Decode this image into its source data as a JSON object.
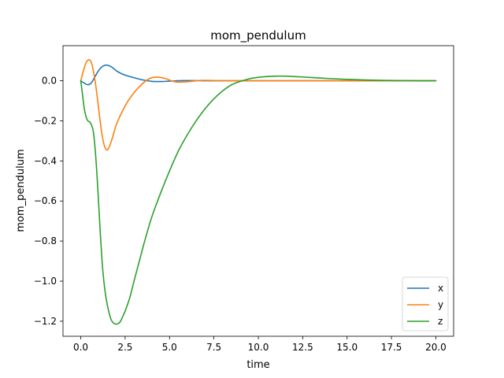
{
  "chart_data": {
    "type": "line",
    "title": "mom_pendulum",
    "xlabel": "time",
    "ylabel": "mom_pendulum",
    "xlim": [
      -1.0,
      21.0
    ],
    "ylim": [
      -1.275,
      0.175
    ],
    "xticks": [
      0.0,
      2.5,
      5.0,
      7.5,
      10.0,
      12.5,
      15.0,
      17.5,
      20.0
    ],
    "xtick_labels": [
      "0.0",
      "2.5",
      "5.0",
      "7.5",
      "10.0",
      "12.5",
      "15.0",
      "17.5",
      "20.0"
    ],
    "yticks": [
      0.0,
      -0.2,
      -0.4,
      -0.6,
      -0.8,
      -1.0,
      -1.2
    ],
    "ytick_labels": [
      "0.0",
      "−0.2",
      "−0.4",
      "−0.6",
      "−0.8",
      "−1.0",
      "−1.2"
    ],
    "grid": false,
    "legend_position": "bottom-right",
    "series": [
      {
        "name": "x",
        "color": "#1f77b4",
        "x": [
          0,
          0.2,
          0.4,
          0.6,
          0.8,
          1.0,
          1.2,
          1.4,
          1.6,
          1.8,
          2.0,
          2.3,
          2.6,
          3.0,
          3.5,
          4.0,
          4.5,
          5.0,
          5.5,
          6.0,
          7.0,
          8.0,
          10.0,
          12.0,
          15.0,
          20.0
        ],
        "y": [
          0.0,
          -0.012,
          -0.02,
          -0.01,
          0.02,
          0.05,
          0.07,
          0.078,
          0.075,
          0.065,
          0.05,
          0.035,
          0.025,
          0.015,
          0.004,
          -0.003,
          -0.004,
          -0.002,
          0.0,
          0.001,
          0.0,
          0.0,
          0.0,
          0.0,
          0.0,
          0.0
        ]
      },
      {
        "name": "y",
        "color": "#ff7f0e",
        "x": [
          0,
          0.15,
          0.3,
          0.45,
          0.6,
          0.75,
          0.9,
          1.05,
          1.2,
          1.35,
          1.5,
          1.65,
          1.8,
          2.0,
          2.3,
          2.6,
          3.0,
          3.3,
          3.6,
          3.9,
          4.2,
          4.5,
          4.8,
          5.1,
          5.5,
          6.0,
          6.5,
          7.0,
          8.0,
          10.0,
          12.0,
          15.0,
          20.0
        ],
        "y": [
          0.0,
          0.05,
          0.09,
          0.105,
          0.09,
          0.03,
          -0.06,
          -0.17,
          -0.27,
          -0.33,
          -0.345,
          -0.32,
          -0.28,
          -0.22,
          -0.16,
          -0.11,
          -0.06,
          -0.03,
          -0.005,
          0.012,
          0.018,
          0.016,
          0.01,
          0.0,
          -0.007,
          -0.005,
          0.0,
          0.002,
          0.0,
          0.0,
          0.0,
          0.0,
          0.0
        ]
      },
      {
        "name": "z",
        "color": "#2ca02c",
        "x": [
          0,
          0.1,
          0.2,
          0.3,
          0.4,
          0.5,
          0.6,
          0.7,
          0.8,
          0.9,
          1.0,
          1.1,
          1.2,
          1.3,
          1.4,
          1.5,
          1.6,
          1.7,
          1.8,
          1.9,
          2.0,
          2.1,
          2.2,
          2.3,
          2.4,
          2.5,
          2.6,
          2.7,
          2.8,
          3.0,
          3.3,
          3.6,
          4.0,
          4.5,
          5.0,
          5.5,
          6.0,
          6.5,
          7.0,
          7.5,
          8.0,
          8.5,
          9.0,
          9.5,
          10.0,
          10.5,
          11.0,
          11.5,
          12.0,
          13.0,
          14.0,
          15.0,
          16.0,
          17.0,
          18.0,
          19.0,
          20.0
        ],
        "y": [
          0.0,
          -0.07,
          -0.14,
          -0.18,
          -0.2,
          -0.205,
          -0.22,
          -0.25,
          -0.33,
          -0.45,
          -0.6,
          -0.76,
          -0.9,
          -1.0,
          -1.07,
          -1.12,
          -1.16,
          -1.19,
          -1.205,
          -1.212,
          -1.215,
          -1.212,
          -1.205,
          -1.19,
          -1.17,
          -1.15,
          -1.125,
          -1.1,
          -1.07,
          -1.0,
          -0.9,
          -0.8,
          -0.68,
          -0.56,
          -0.45,
          -0.35,
          -0.27,
          -0.2,
          -0.14,
          -0.09,
          -0.05,
          -0.02,
          -0.003,
          0.01,
          0.017,
          0.021,
          0.023,
          0.023,
          0.021,
          0.016,
          0.011,
          0.007,
          0.004,
          0.002,
          0.001,
          0.0,
          0.0
        ]
      }
    ]
  }
}
